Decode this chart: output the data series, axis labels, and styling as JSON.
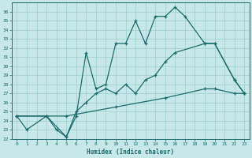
{
  "xlabel": "Humidex (Indice chaleur)",
  "ylabel": "",
  "bg_color": "#c6e8e8",
  "grid_color": "#9ecece",
  "line_color": "#1e6b6b",
  "xlim": [
    -0.5,
    23.5
  ],
  "ylim": [
    22,
    37
  ],
  "xticks": [
    0,
    1,
    2,
    3,
    4,
    5,
    6,
    7,
    8,
    9,
    10,
    11,
    12,
    13,
    14,
    15,
    16,
    17,
    18,
    19,
    20,
    21,
    22,
    23
  ],
  "yticks": [
    22,
    23,
    24,
    25,
    26,
    27,
    28,
    29,
    30,
    31,
    32,
    33,
    34,
    35,
    36
  ],
  "line1_x": [
    0,
    1,
    3,
    4,
    5,
    6,
    7,
    8,
    9,
    10,
    11,
    12,
    13,
    14,
    15,
    16,
    17,
    19,
    20,
    22,
    23
  ],
  "line1_y": [
    24.5,
    23.0,
    24.5,
    23.0,
    22.2,
    24.5,
    31.5,
    27.5,
    28.0,
    32.5,
    32.5,
    35.0,
    32.5,
    35.5,
    35.5,
    36.5,
    35.5,
    32.5,
    32.5,
    28.5,
    27.0
  ],
  "line2_x": [
    0,
    3,
    5,
    6,
    7,
    8,
    9,
    10,
    11,
    12,
    13,
    14,
    15,
    16,
    19,
    20,
    22,
    23
  ],
  "line2_y": [
    24.5,
    24.5,
    22.2,
    25.0,
    26.0,
    27.0,
    27.5,
    27.0,
    28.0,
    27.0,
    28.5,
    29.0,
    30.5,
    31.5,
    32.5,
    32.5,
    28.5,
    27.0
  ],
  "line3_x": [
    0,
    5,
    10,
    15,
    19,
    20,
    22,
    23
  ],
  "line3_y": [
    24.5,
    24.5,
    25.5,
    26.5,
    27.5,
    27.5,
    27.0,
    27.0
  ]
}
